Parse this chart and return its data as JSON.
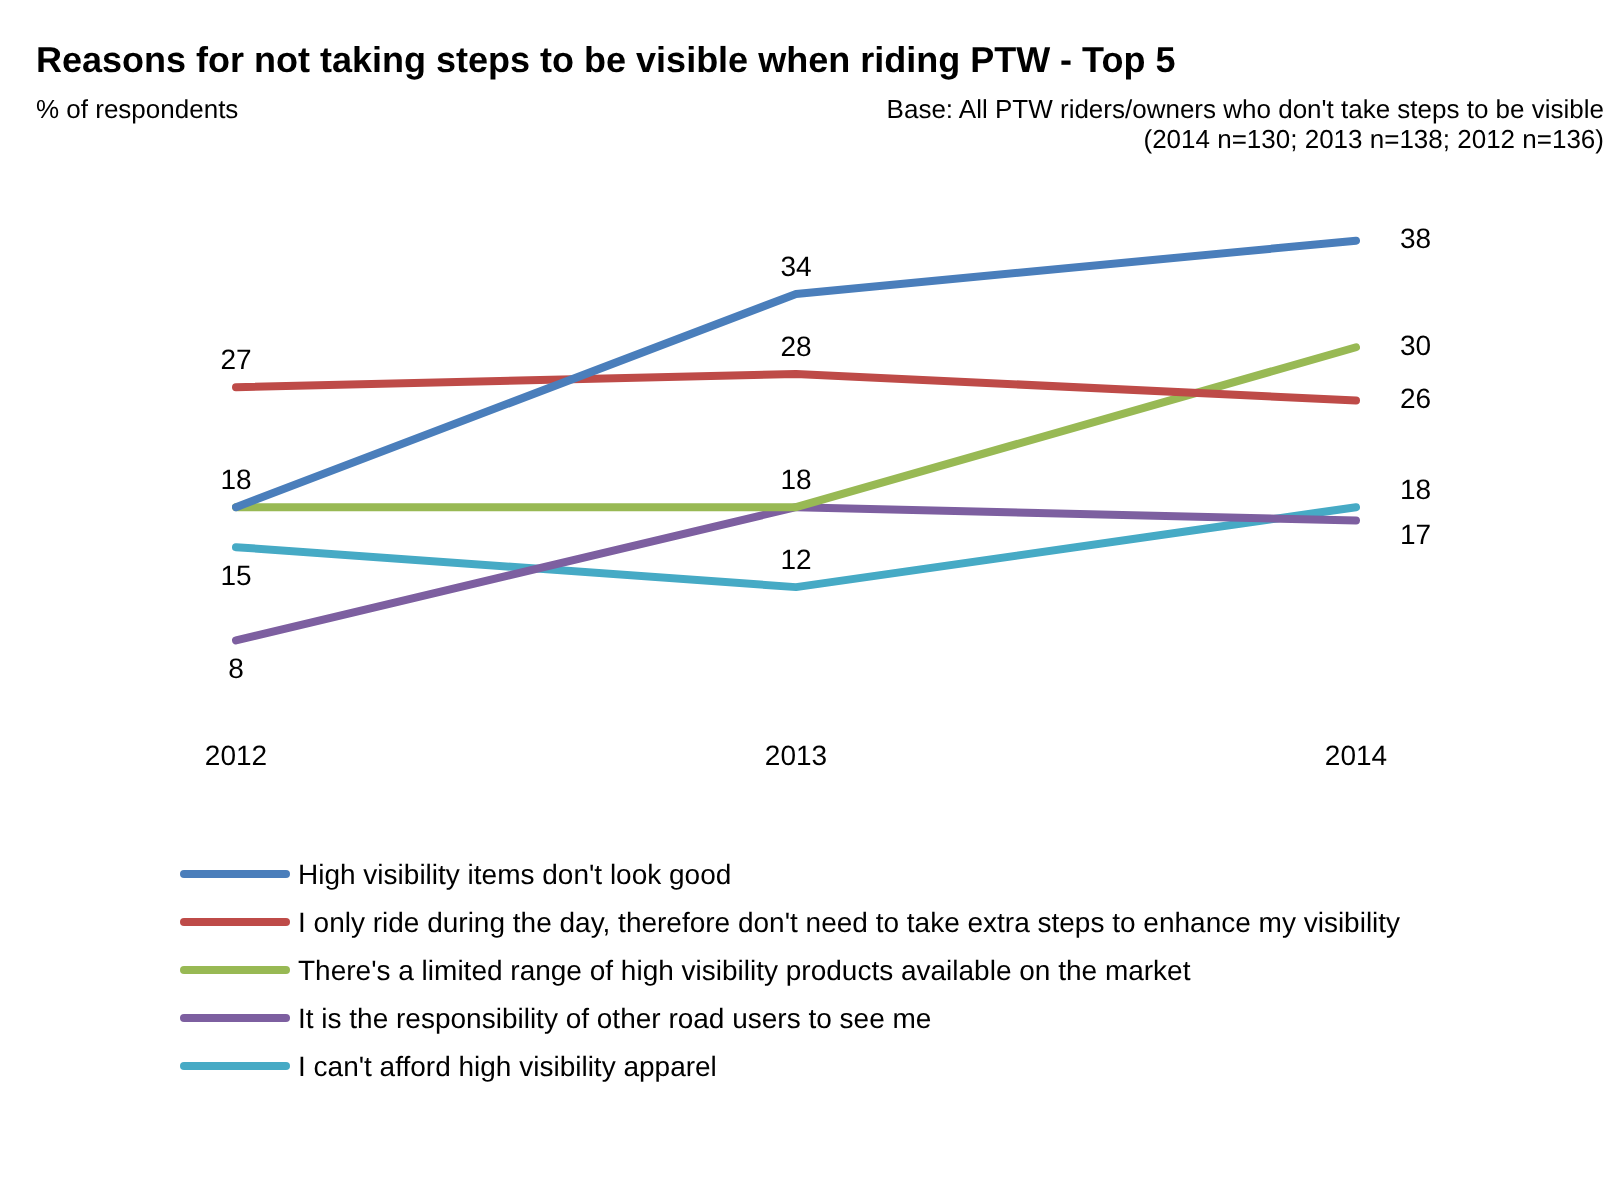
{
  "chart_data": {
    "type": "line",
    "title": "Reasons for not taking steps to be visible when riding PTW - Top 5",
    "subtitle": "% of respondents",
    "annotations": [
      "Base: All PTW riders/owners who don't take steps to be visible",
      "(2014 n=130; 2013 n=138; 2012 n=136)"
    ],
    "categories": [
      "2012",
      "2013",
      "2014"
    ],
    "series": [
      {
        "name": "High visibility items don't look good",
        "color": "#4a7ebb",
        "values": [
          18,
          34,
          38
        ],
        "value_labels": [
          "18",
          "34",
          "38"
        ]
      },
      {
        "name": "I only ride during the day, therefore don't need to take extra steps to enhance my visibility",
        "color": "#be4b48",
        "values": [
          27,
          28,
          26
        ],
        "value_labels": [
          "27",
          "28",
          "26"
        ]
      },
      {
        "name": "There's a limited range of high visibility products available on the market",
        "color": "#98b954",
        "values": [
          18,
          18,
          30
        ],
        "value_labels": [
          null,
          "18",
          "30"
        ]
      },
      {
        "name": "It is the responsibility of other road users to see me",
        "color": "#7d5fa0",
        "values": [
          8,
          18,
          17
        ],
        "value_labels": [
          "8",
          null,
          "17"
        ]
      },
      {
        "name": "I can't afford high visibility apparel",
        "color": "#46aac5",
        "values": [
          15,
          12,
          18
        ],
        "value_labels": [
          "15",
          "12",
          "18"
        ]
      }
    ],
    "grid": false,
    "legend": "bottom",
    "marker": "none",
    "line_style": "solid"
  }
}
